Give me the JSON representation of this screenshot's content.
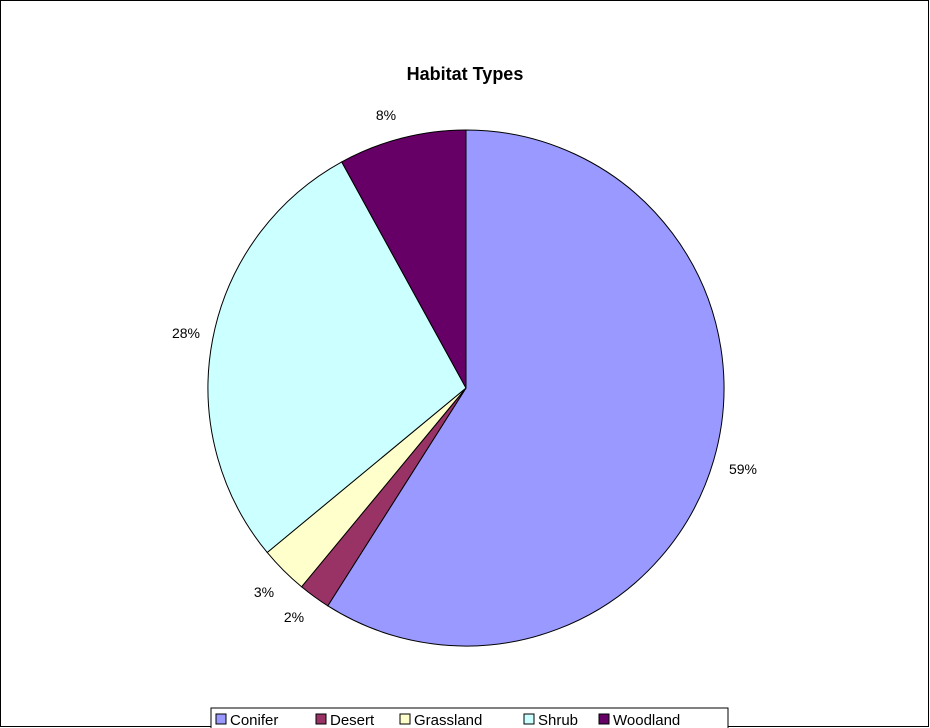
{
  "chart_data": {
    "type": "pie",
    "title": "Habitat Types",
    "categories": [
      "Conifer",
      "Desert",
      "Grassland",
      "Shrub",
      "Woodland"
    ],
    "values": [
      59,
      2,
      3,
      28,
      8
    ],
    "data_labels": [
      "59%",
      "2%",
      "3%",
      "28%",
      "8%"
    ],
    "colors": [
      "#9999ff",
      "#993366",
      "#ffffcc",
      "#ccffff",
      "#660066"
    ],
    "legend_position": "bottom",
    "start_angle": "12 o'clock",
    "direction": "clockwise"
  }
}
